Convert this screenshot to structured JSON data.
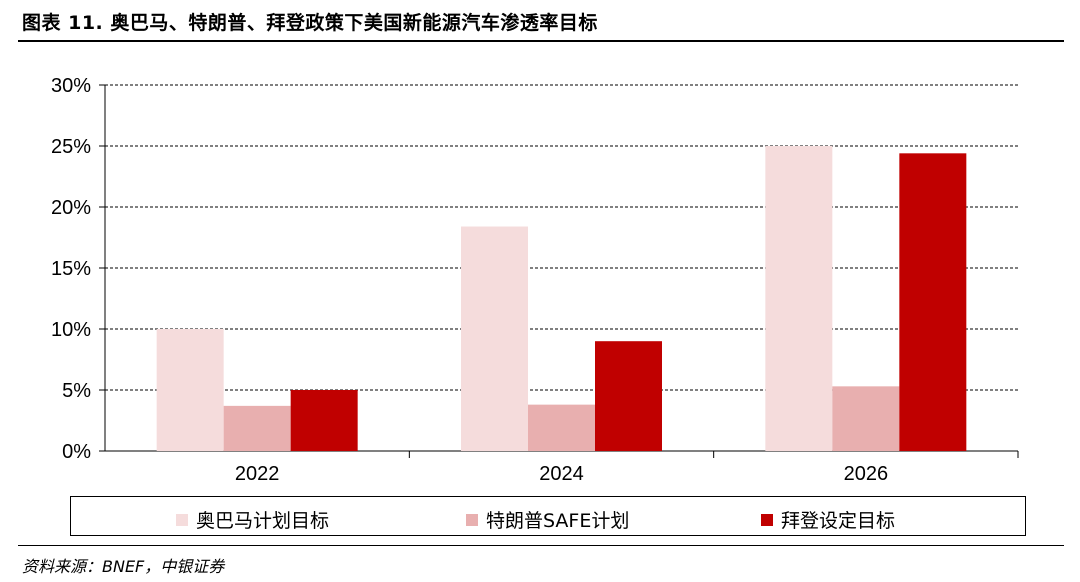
{
  "header": {
    "title": "图表 11. 奥巴马、特朗普、拜登政策下美国新能源汽车渗透率目标"
  },
  "footer": {
    "source": "资料来源：BNEF，中银证券"
  },
  "chart_data": {
    "type": "bar",
    "title": "",
    "xlabel": "",
    "ylabel": "",
    "categories": [
      "2022",
      "2024",
      "2026"
    ],
    "ylim": [
      0,
      30
    ],
    "yticks": [
      "0%",
      "5%",
      "10%",
      "15%",
      "20%",
      "25%",
      "30%"
    ],
    "grid": true,
    "legend_position": "bottom",
    "series": [
      {
        "name": "奥巴马计划目标",
        "values": [
          10,
          18.4,
          25
        ],
        "color": "#F5DCDC"
      },
      {
        "name": "特朗普SAFE计划",
        "values": [
          3.7,
          3.8,
          5.3
        ],
        "color": "#E8AFAF"
      },
      {
        "name": "拜登设定目标",
        "values": [
          5.0,
          9.0,
          24.4
        ],
        "color": "#C00000"
      }
    ]
  }
}
